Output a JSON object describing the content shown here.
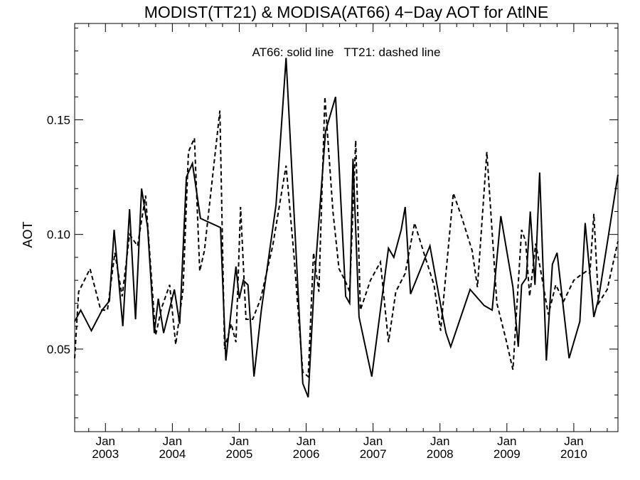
{
  "chart_data": {
    "type": "line",
    "title": "MODIST(TT21) & MODISA(AT66) 4−Day AOT for AtlNE",
    "ylabel": "AOT",
    "xlabel": "",
    "annotation": "AT66: solid line   TT21: dashed line",
    "ylim": [
      0.014,
      0.192
    ],
    "xlim": [
      2002.54,
      2010.66
    ],
    "grid": false,
    "legend": "none",
    "y_ticks": [
      {
        "value": 0.05,
        "label": "0.05"
      },
      {
        "value": 0.1,
        "label": "0.10"
      },
      {
        "value": 0.15,
        "label": "0.15"
      }
    ],
    "x_ticks": [
      {
        "value": 2003.0,
        "month": "Jan",
        "year": "2003"
      },
      {
        "value": 2004.0,
        "month": "Jan",
        "year": "2004"
      },
      {
        "value": 2005.0,
        "month": "Jan",
        "year": "2005"
      },
      {
        "value": 2006.0,
        "month": "Jan",
        "year": "2006"
      },
      {
        "value": 2007.0,
        "month": "Jan",
        "year": "2007"
      },
      {
        "value": 2008.0,
        "month": "Jan",
        "year": "2008"
      },
      {
        "value": 2009.0,
        "month": "Jan",
        "year": "2009"
      },
      {
        "value": 2010.0,
        "month": "Jan",
        "year": "2010"
      }
    ],
    "series": [
      {
        "name": "AT66",
        "style": "solid",
        "x": [
          2002.54,
          2002.63,
          2002.79,
          2002.95,
          2003.06,
          2003.13,
          2003.26,
          2003.36,
          2003.45,
          2003.54,
          2003.63,
          2003.73,
          2003.79,
          2003.87,
          2004.03,
          2004.11,
          2004.21,
          2004.3,
          2004.42,
          2004.72,
          2004.8,
          2004.95,
          2005.0,
          2005.06,
          2005.13,
          2005.22,
          2005.33,
          2005.55,
          2005.7,
          2005.95,
          2006.03,
          2006.12,
          2006.29,
          2006.44,
          2006.59,
          2006.65,
          2006.7,
          2006.79,
          2006.98,
          2007.23,
          2007.31,
          2007.42,
          2007.48,
          2007.56,
          2007.85,
          2008.03,
          2008.09,
          2008.16,
          2008.45,
          2008.66,
          2008.78,
          2008.91,
          2009.09,
          2009.17,
          2009.22,
          2009.29,
          2009.35,
          2009.42,
          2009.49,
          2009.59,
          2009.68,
          2009.75,
          2009.93,
          2010.09,
          2010.17,
          2010.3,
          2010.37,
          2010.66
        ],
        "values": [
          0.062,
          0.067,
          0.058,
          0.067,
          0.071,
          0.102,
          0.06,
          0.111,
          0.063,
          0.12,
          0.103,
          0.057,
          0.072,
          0.057,
          0.076,
          0.061,
          0.125,
          0.131,
          0.107,
          0.103,
          0.045,
          0.086,
          0.072,
          0.08,
          0.078,
          0.038,
          0.067,
          0.113,
          0.177,
          0.035,
          0.029,
          0.078,
          0.145,
          0.16,
          0.073,
          0.07,
          0.133,
          0.064,
          0.038,
          0.094,
          0.09,
          0.102,
          0.112,
          0.074,
          0.095,
          0.066,
          0.057,
          0.051,
          0.076,
          0.069,
          0.067,
          0.108,
          0.077,
          0.051,
          0.078,
          0.081,
          0.11,
          0.078,
          0.127,
          0.045,
          0.087,
          0.092,
          0.046,
          0.062,
          0.105,
          0.064,
          0.072,
          0.126
        ]
      },
      {
        "name": "TT21",
        "style": "dashed",
        "x": [
          2002.54,
          2002.6,
          2002.77,
          2002.93,
          2003.03,
          2003.14,
          2003.25,
          2003.36,
          2003.48,
          2003.6,
          2003.75,
          2003.84,
          2003.96,
          2004.05,
          2004.16,
          2004.24,
          2004.33,
          2004.41,
          2004.48,
          2004.71,
          2004.78,
          2004.88,
          2004.95,
          2005.02,
          2005.1,
          2005.2,
          2005.32,
          2005.5,
          2005.7,
          2005.82,
          2005.95,
          2006.03,
          2006.11,
          2006.19,
          2006.28,
          2006.4,
          2006.49,
          2006.58,
          2006.65,
          2006.74,
          2006.81,
          2006.96,
          2007.11,
          2007.23,
          2007.34,
          2007.48,
          2007.62,
          2007.78,
          2007.91,
          2008.01,
          2008.2,
          2008.32,
          2008.48,
          2008.56,
          2008.7,
          2008.85,
          2008.98,
          2009.09,
          2009.22,
          2009.28,
          2009.34,
          2009.43,
          2009.5,
          2009.62,
          2009.73,
          2009.85,
          2010.0,
          2010.09,
          2010.19,
          2010.24,
          2010.3,
          2010.37,
          2010.5,
          2010.66
        ],
        "values": [
          0.046,
          0.075,
          0.085,
          0.067,
          0.067,
          0.092,
          0.073,
          0.1,
          0.095,
          0.117,
          0.056,
          0.068,
          0.078,
          0.052,
          0.076,
          0.136,
          0.142,
          0.084,
          0.093,
          0.154,
          0.05,
          0.061,
          0.053,
          0.112,
          0.063,
          0.063,
          0.072,
          0.095,
          0.13,
          0.09,
          0.04,
          0.038,
          0.092,
          0.075,
          0.16,
          0.11,
          0.085,
          0.08,
          0.075,
          0.141,
          0.067,
          0.08,
          0.088,
          0.053,
          0.075,
          0.083,
          0.105,
          0.09,
          0.078,
          0.058,
          0.118,
          0.108,
          0.093,
          0.077,
          0.136,
          0.07,
          0.055,
          0.041,
          0.102,
          0.097,
          0.073,
          0.096,
          0.085,
          0.065,
          0.078,
          0.071,
          0.08,
          0.082,
          0.084,
          0.083,
          0.109,
          0.07,
          0.076,
          0.097
        ]
      }
    ]
  }
}
